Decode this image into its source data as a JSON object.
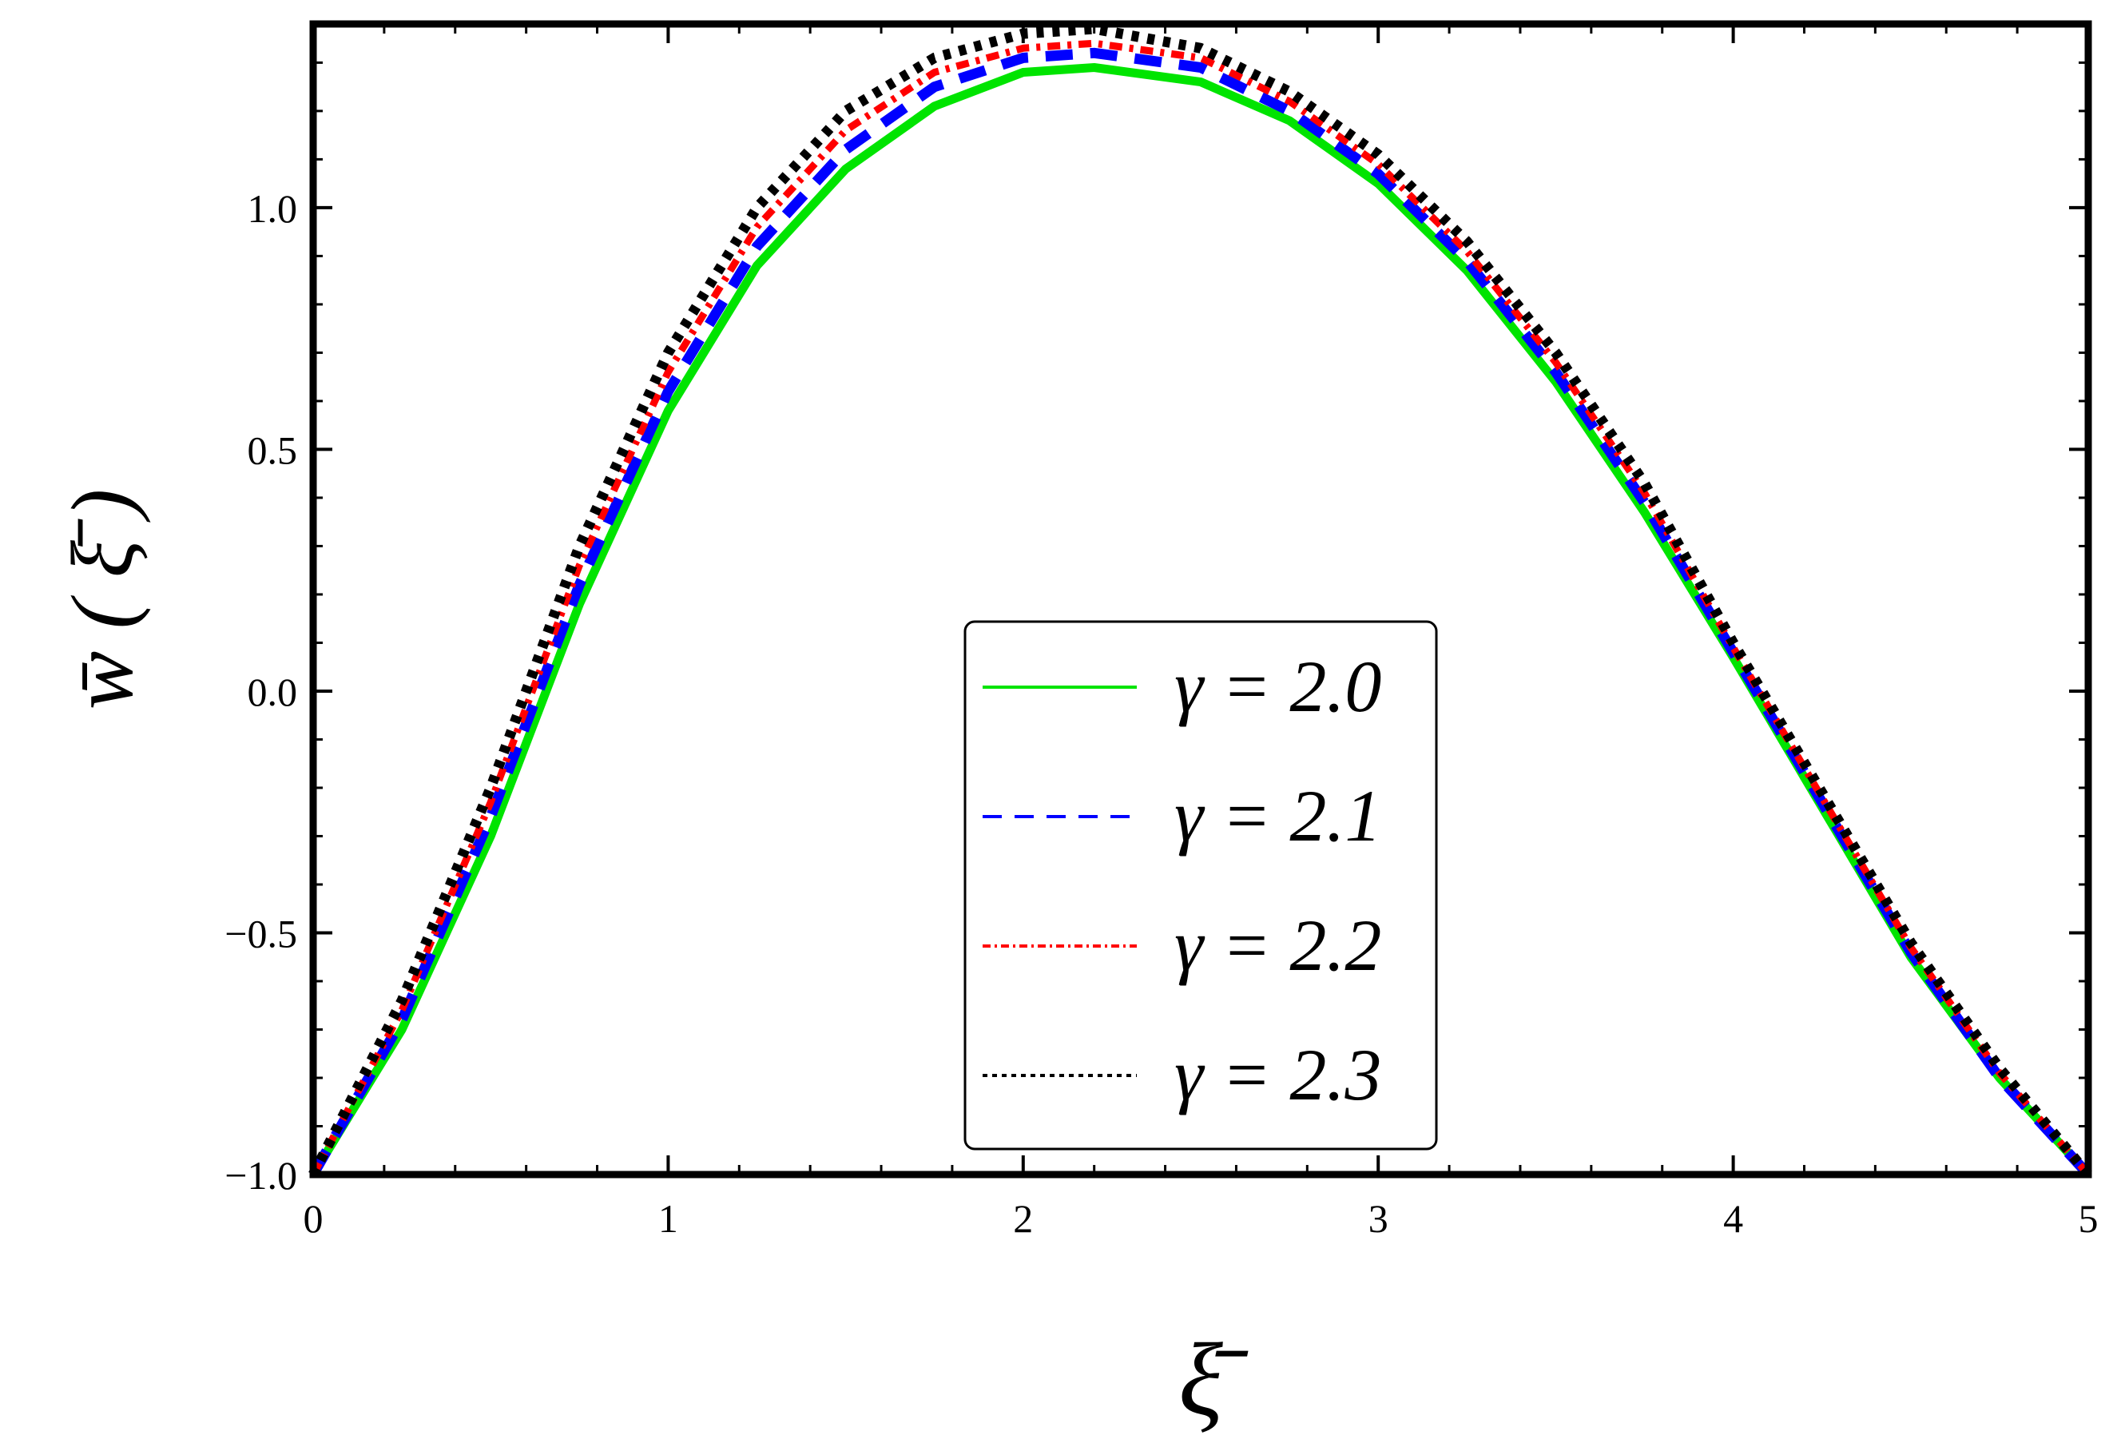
{
  "chart_data": {
    "type": "line",
    "title": "",
    "xlabel": "ξ̄",
    "ylabel": "w̄ ( ξ̄ )",
    "xlim": [
      0,
      5
    ],
    "ylim": [
      -1.0,
      1.38
    ],
    "x_ticks": [
      "0",
      "1",
      "2",
      "3",
      "4",
      "5"
    ],
    "y_ticks": [
      "−1.0",
      "−0.5",
      "0.0",
      "0.5",
      "1.0"
    ],
    "grid": false,
    "legend_position": "bottom-center",
    "series": [
      {
        "name": "γ = 2.0",
        "color": "#00e400",
        "style": "solid",
        "x": [
          0,
          0.25,
          0.5,
          0.75,
          1.0,
          1.25,
          1.5,
          1.75,
          2.0,
          2.2,
          2.5,
          2.75,
          3.0,
          3.25,
          3.5,
          3.75,
          4.0,
          4.25,
          4.5,
          4.75,
          5.0
        ],
        "y": [
          -1.0,
          -0.7,
          -0.3,
          0.18,
          0.58,
          0.88,
          1.08,
          1.21,
          1.28,
          1.29,
          1.26,
          1.18,
          1.05,
          0.87,
          0.64,
          0.37,
          0.07,
          -0.24,
          -0.55,
          -0.8,
          -1.0
        ]
      },
      {
        "name": "γ = 2.1",
        "color": "#0000ff",
        "style": "dashed",
        "x": [
          0,
          0.25,
          0.5,
          0.75,
          1.0,
          1.25,
          1.5,
          1.75,
          2.0,
          2.2,
          2.5,
          2.75,
          3.0,
          3.25,
          3.5,
          3.75,
          4.0,
          4.25,
          4.5,
          4.75,
          5.0
        ],
        "y": [
          -1.0,
          -0.68,
          -0.26,
          0.22,
          0.62,
          0.92,
          1.12,
          1.25,
          1.31,
          1.32,
          1.29,
          1.2,
          1.07,
          0.89,
          0.66,
          0.39,
          0.08,
          -0.23,
          -0.54,
          -0.8,
          -1.0
        ]
      },
      {
        "name": "γ = 2.2",
        "color": "#ff0000",
        "style": "dot-dash",
        "x": [
          0,
          0.25,
          0.5,
          0.75,
          1.0,
          1.25,
          1.5,
          1.75,
          2.0,
          2.2,
          2.5,
          2.75,
          3.0,
          3.25,
          3.5,
          3.75,
          4.0,
          4.25,
          4.5,
          4.75,
          5.0
        ],
        "y": [
          -1.0,
          -0.66,
          -0.23,
          0.26,
          0.66,
          0.96,
          1.16,
          1.28,
          1.33,
          1.34,
          1.31,
          1.22,
          1.09,
          0.91,
          0.68,
          0.41,
          0.09,
          -0.22,
          -0.53,
          -0.79,
          -1.0
        ]
      },
      {
        "name": "γ = 2.3",
        "color": "#000000",
        "style": "dotted",
        "x": [
          0,
          0.25,
          0.5,
          0.75,
          1.0,
          1.25,
          1.5,
          1.75,
          2.0,
          2.2,
          2.5,
          2.75,
          3.0,
          3.25,
          3.5,
          3.75,
          4.0,
          4.25,
          4.5,
          4.75,
          5.0
        ],
        "y": [
          -1.0,
          -0.64,
          -0.2,
          0.3,
          0.7,
          1.0,
          1.2,
          1.31,
          1.36,
          1.37,
          1.33,
          1.24,
          1.11,
          0.93,
          0.7,
          0.43,
          0.1,
          -0.21,
          -0.52,
          -0.78,
          -1.0
        ]
      }
    ]
  }
}
